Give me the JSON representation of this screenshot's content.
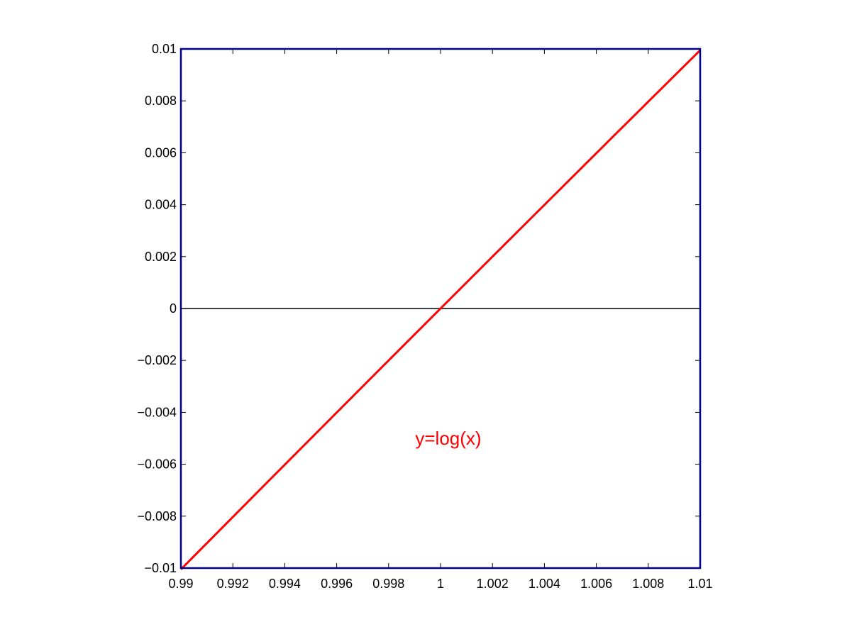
{
  "chart_data": {
    "type": "line",
    "title": "",
    "xlabel": "",
    "ylabel": "",
    "xlim": [
      0.99,
      1.01
    ],
    "ylim": [
      -0.01,
      0.01
    ],
    "grid": false,
    "x_ticks": [
      0.99,
      0.992,
      0.994,
      0.996,
      0.998,
      1,
      1.002,
      1.004,
      1.006,
      1.008,
      1.01
    ],
    "x_tick_labels": [
      "0.99",
      "0.992",
      "0.994",
      "0.996",
      "0.998",
      "1",
      "1.002",
      "1.004",
      "1.006",
      "1.008",
      "1.01"
    ],
    "y_ticks": [
      -0.01,
      -0.008,
      -0.006,
      -0.004,
      -0.002,
      0,
      0.002,
      0.004,
      0.006,
      0.008,
      0.01
    ],
    "y_tick_labels": [
      "−0.01",
      "−0.008",
      "−0.006",
      "−0.004",
      "−0.002",
      "0",
      "0.002",
      "0.004",
      "0.006",
      "0.008",
      "0.01"
    ],
    "series": [
      {
        "function": "log",
        "color": "#ff0000",
        "x": [
          0.99,
          0.992,
          0.994,
          0.996,
          0.998,
          1,
          1.002,
          1.004,
          1.006,
          1.008,
          1.01
        ],
        "y": [
          -0.01005,
          -0.00803,
          -0.00602,
          -0.00401,
          -0.002,
          0,
          0.002,
          0.00399,
          0.00598,
          0.00797,
          0.00995
        ]
      }
    ],
    "reference_lines": [
      {
        "type": "horizontal",
        "y": 0,
        "color": "#000000"
      }
    ],
    "annotations": [
      {
        "text": "y=log(x)",
        "x": 1.0003,
        "y": -0.005,
        "color": "#ff0000"
      }
    ],
    "axes_color": "#00008b"
  }
}
